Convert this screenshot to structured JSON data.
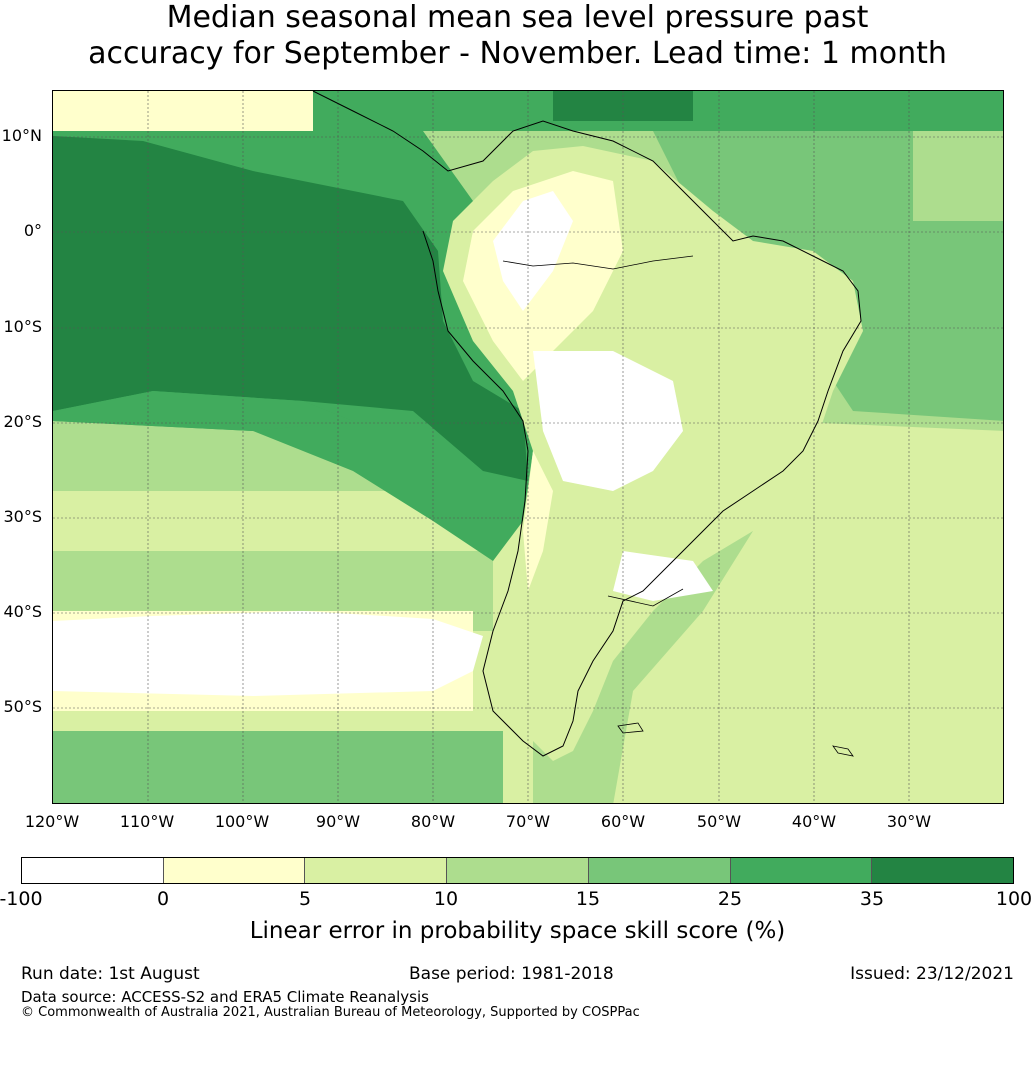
{
  "title_line1": "Median seasonal mean sea level pressure past",
  "title_line2": "accuracy for September - November. Lead time: 1 month",
  "lat_labels": [
    "10°N",
    "0°",
    "10°S",
    "20°S",
    "30°S",
    "40°S",
    "50°S"
  ],
  "lon_labels": [
    "120°W",
    "110°W",
    "100°W",
    "90°W",
    "80°W",
    "70°W",
    "60°W",
    "50°W",
    "40°W",
    "30°W"
  ],
  "colorbar": {
    "ticks": [
      "-100",
      "0",
      "5",
      "10",
      "15",
      "25",
      "35",
      "100"
    ],
    "colors": [
      "#ffffff",
      "#ffffcc",
      "#d9f0a3",
      "#addd8e",
      "#78c679",
      "#41ab5d",
      "#238443"
    ],
    "label": "Linear error in probability space skill score (%)"
  },
  "footer": {
    "run_date": "Run date: 1st August",
    "base_period": "Base period: 1981-2018",
    "issued": "Issued: 23/12/2021",
    "data_source": "Data source: ACCESS-S2 and ERA5 Climate Reanalysis",
    "copyright": "© Commonwealth of Australia 2021, Australian Bureau of Meteorology, Supported by COSPPac"
  }
}
